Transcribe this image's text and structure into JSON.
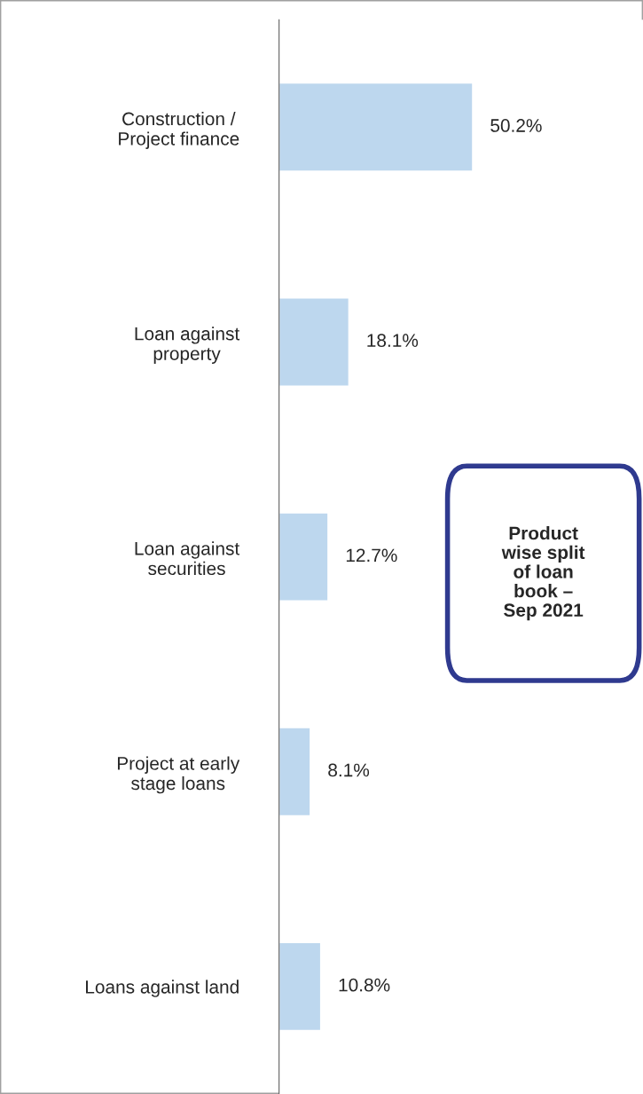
{
  "chart_data": {
    "type": "bar",
    "orientation": "horizontal",
    "title": "Product\nwise split\nof loan\nbook –\nSep 2021",
    "categories": [
      "Construction /\nProject finance",
      "Loan against\nproperty",
      "Loan against\nsecurities",
      "Project at early\nstage loans",
      "Loans against land"
    ],
    "values": [
      50.2,
      18.1,
      12.7,
      8.1,
      10.8
    ],
    "value_labels": [
      "50.2%",
      "18.1%",
      "12.7%",
      "8.1%",
      "10.8%"
    ],
    "color": "#bdd7ee",
    "grid": false,
    "legend": false,
    "tick_labels": "y"
  }
}
